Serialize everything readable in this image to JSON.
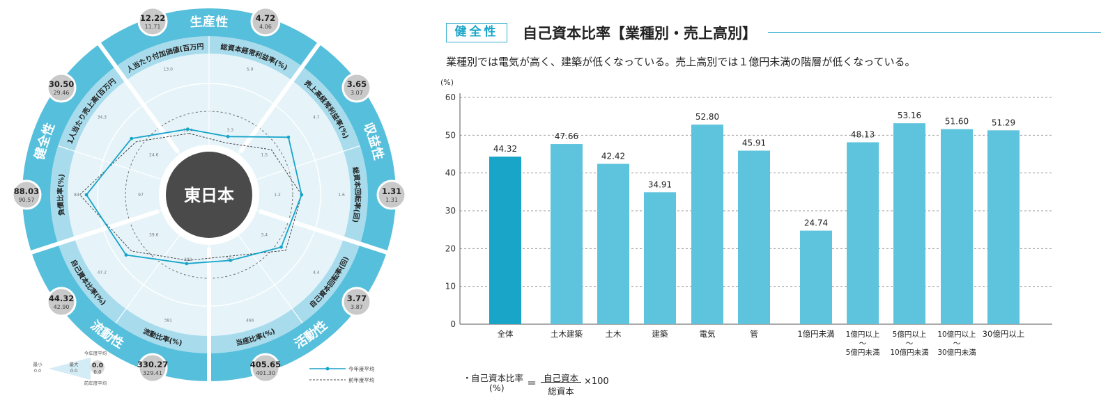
{
  "radar": {
    "center_label": "東日本",
    "categories": [
      {
        "label": "生産性",
        "indicators": [
          0,
          1
        ]
      },
      {
        "label": "収益性",
        "indicators": [
          2,
          3
        ]
      },
      {
        "label": "活動性",
        "indicators": [
          4,
          5
        ]
      },
      {
        "label": "流動性",
        "indicators": [
          6,
          7
        ]
      },
      {
        "label": "健全性",
        "indicators": [
          8,
          9
        ]
      }
    ],
    "indicators": [
      {
        "label": "1人当たり付加価値(百万円)",
        "current": "12.22",
        "previous": "11.71",
        "avg_scale": "13.0"
      },
      {
        "label": "総資本経常利益率(%)",
        "current": "4.72",
        "previous": "4.06",
        "avg_scale": "5.9"
      },
      {
        "label": "売上高経常利益率(%)",
        "current": "3.65",
        "previous": "3.07",
        "avg_scale": "4.7"
      },
      {
        "label": "総資本回転率(回)",
        "current": "1.31",
        "previous": "1.31",
        "avg_scale": "1.6"
      },
      {
        "label": "自己資本回転率(回)",
        "current": "3.77",
        "previous": "3.87",
        "avg_scale": "4.4"
      },
      {
        "label": "当座比率(%)",
        "current": "405.65",
        "previous": "401.30",
        "avg_scale": "466"
      },
      {
        "label": "流動比率(%)",
        "current": "330.27",
        "previous": "329.41",
        "avg_scale": "381"
      },
      {
        "label": "自己資本比率(%)",
        "current": "44.32",
        "previous": "42.90",
        "avg_scale": "47.2"
      },
      {
        "label": "負債比率(%)",
        "current": "88.03",
        "previous": "90.57",
        "avg_scale": "84"
      },
      {
        "label": "1人当たり売上高(百万円)",
        "current": "30.50",
        "previous": "29.46",
        "avg_scale": "34.3"
      }
    ],
    "inner_scale": [
      "10.4",
      "3.3",
      "1.5",
      "1.2",
      "3.4",
      "387",
      "292",
      "39.6",
      "97",
      "24.6"
    ],
    "current_pos": [
      0.62,
      0.55,
      0.88,
      0.83,
      0.8,
      0.62,
      0.65,
      0.92,
      1.1,
      0.86
    ],
    "previous_pos": [
      0.58,
      0.49,
      0.69,
      0.83,
      0.85,
      0.58,
      0.62,
      0.86,
      1.16,
      0.81
    ],
    "key": {
      "low": "最小",
      "low_val": "0.0",
      "high": "最大",
      "high_val": "0.0",
      "this_year_avg": "今年度平均",
      "last_year_avg": "前年度平均",
      "current_val": "0.0",
      "previous_val": "0.0"
    },
    "legend": {
      "current": "今年度平均",
      "previous": "前年度平均"
    },
    "colors": {
      "primary": "#17a4c9",
      "band": "#56bfdc",
      "ring": "#a8dcec",
      "plate": "#e6f4fa",
      "center": "#4a4a4a"
    }
  },
  "header": {
    "badge": "健全性",
    "title": "自己資本比率【業種別・売上高別】",
    "subtitle": "業種別では電気が高く、建築が低くなっている。売上高別では１億円未満の階層が低くなっている。"
  },
  "chart_data": {
    "type": "bar",
    "ylabel": "(%)",
    "ylim": [
      0,
      60
    ],
    "yticks": [
      0,
      10,
      20,
      30,
      40,
      50,
      60
    ],
    "grid": true,
    "categories": [
      "全体",
      "土木建築",
      "土木",
      "建築",
      "電気",
      "管",
      "1億円未満",
      "1億円以上\n〜\n5億円未満",
      "5億円以上\n〜\n10億円未満",
      "10億円以上\n〜\n30億円未満",
      "30億円以上"
    ],
    "values": [
      44.32,
      47.66,
      42.42,
      34.91,
      52.8,
      45.91,
      24.74,
      48.13,
      53.16,
      51.6,
      51.29
    ],
    "value_labels": [
      "44.32",
      "47.66",
      "42.42",
      "34.91",
      "52.80",
      "45.91",
      "24.74",
      "48.13",
      "53.16",
      "51.60",
      "51.29"
    ],
    "highlight_index": 0,
    "colors": {
      "highlight": "#18a5c8",
      "bar": "#5ec4dd",
      "grid": "#999999",
      "axis": "#555555"
    }
  },
  "formula": {
    "bullet": "・",
    "label": "自己資本比率",
    "unit": "(%)",
    "equals": "＝",
    "numerator": "自己資本",
    "denominator": "総資本",
    "multiplier": "×100"
  }
}
